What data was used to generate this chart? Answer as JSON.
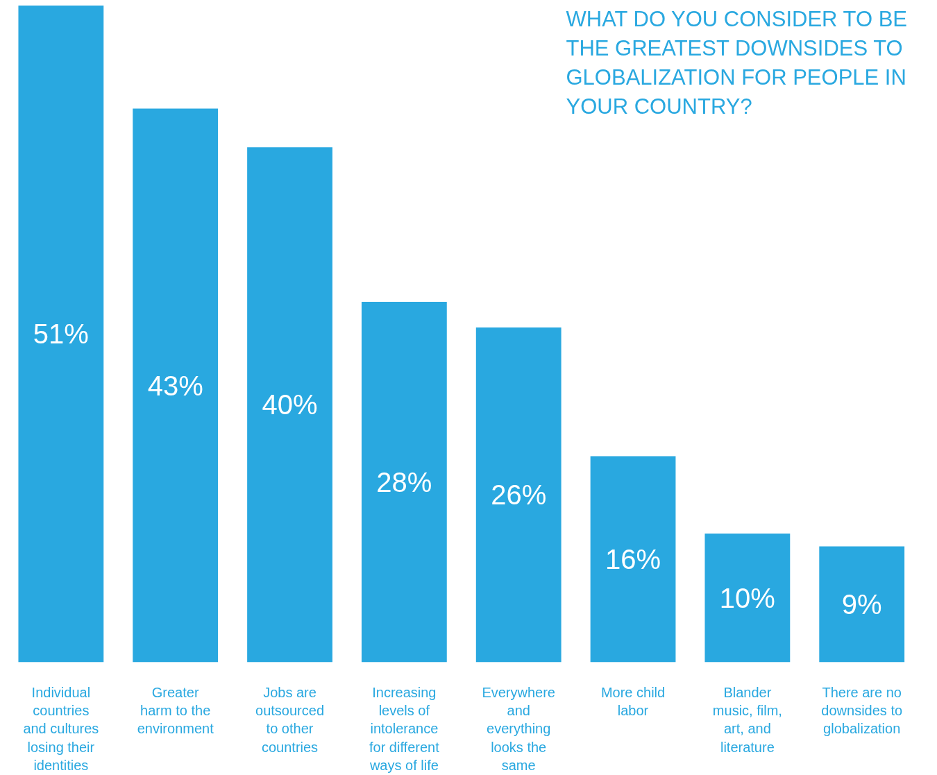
{
  "chart_data": {
    "type": "bar",
    "title": "WHAT DO YOU CONSIDER TO BE\nTHE GREATEST DOWNSIDES TO\nGLOBALIZATION FOR PEOPLE IN\nYOUR COUNTRY?",
    "categories": [
      "Individual\ncountries\nand cultures\nlosing their\nidentities",
      "Greater\nharm to the\nenvironment",
      "Jobs are\noutsourced\nto other\ncountries",
      "Increasing\nlevels of\nintolerance\nfor different\nways of life",
      "Everywhere\nand\neverything\nlooks the\nsame",
      "More child\nlabor",
      "Blander\nmusic, film,\nart, and\nliterature",
      "There are no\ndownsides to\nglobalization"
    ],
    "values": [
      51,
      43,
      40,
      28,
      26,
      16,
      10,
      9
    ],
    "value_labels": [
      "51%",
      "43%",
      "40%",
      "28%",
      "26%",
      "16%",
      "10%",
      "9%"
    ],
    "color": "#29a8e0"
  }
}
